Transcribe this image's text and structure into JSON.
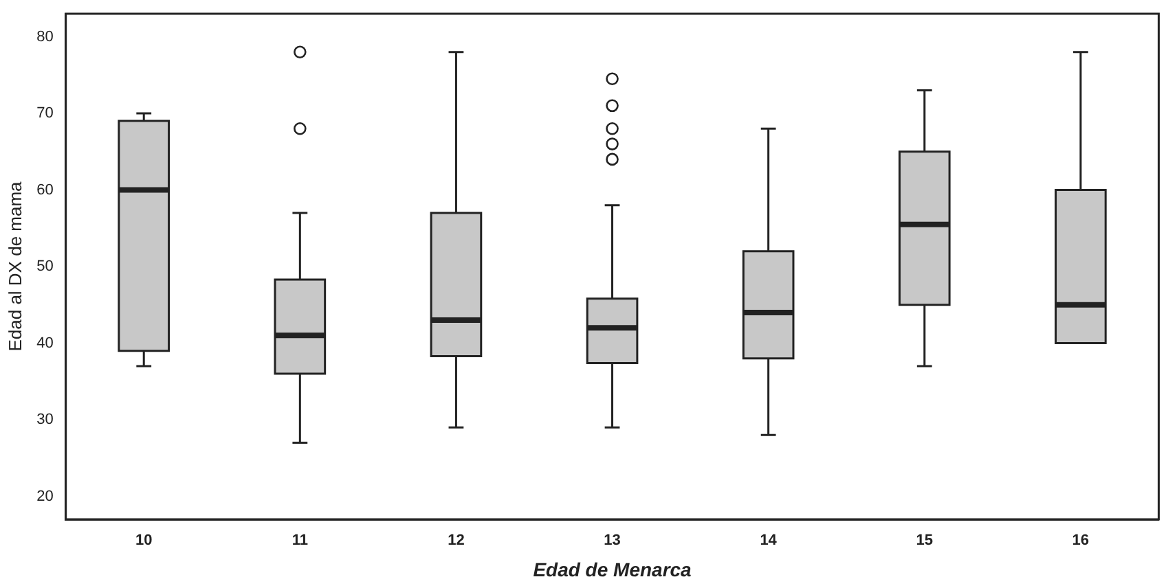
{
  "chart_data": {
    "type": "box",
    "xlabel": "Edad de Menarca",
    "ylabel": "Edad al DX de mama",
    "categories": [
      "10",
      "11",
      "12",
      "13",
      "14",
      "15",
      "16"
    ],
    "ylim": [
      17,
      83
    ],
    "yticks": [
      20,
      30,
      40,
      50,
      60,
      70,
      80
    ],
    "grid": false,
    "legend": false,
    "marker": "circle",
    "series": [
      {
        "color": "#c8c8c8",
        "boxes": [
          {
            "low": 37,
            "q1": 39,
            "median": 60,
            "q3": 69,
            "high": 70
          },
          {
            "low": 27,
            "q1": 36,
            "median": 41,
            "q3": 48.3,
            "high": 57,
            "outliers": [
              68,
              78
            ]
          },
          {
            "low": 29,
            "q1": 38.3,
            "median": 43,
            "q3": 57,
            "high": 78
          },
          {
            "low": 29,
            "q1": 37.4,
            "median": 42,
            "q3": 45.8,
            "high": 58,
            "outliers": [
              64,
              66,
              68,
              71,
              74.5
            ]
          },
          {
            "low": 28,
            "q1": 38,
            "median": 44,
            "q3": 52,
            "high": 68
          },
          {
            "low": 37,
            "q1": 45,
            "median": 55.5,
            "q3": 65,
            "high": 73
          },
          {
            "low": 40,
            "q1": 40,
            "median": 45,
            "q3": 60,
            "high": 78
          }
        ]
      }
    ]
  }
}
